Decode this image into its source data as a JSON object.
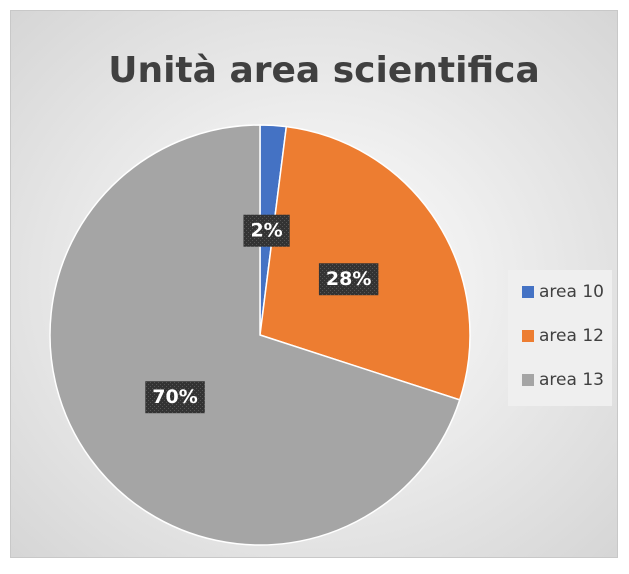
{
  "chart_data": {
    "type": "pie",
    "title": "Unità area scientifica",
    "categories": [
      "area 10",
      "area 12",
      "area 13"
    ],
    "values": [
      2,
      28,
      70
    ],
    "value_labels": [
      "2%",
      "28%",
      "70%"
    ],
    "colors": [
      "#4472c4",
      "#ed7d31",
      "#a5a5a5"
    ],
    "legend": "right"
  }
}
